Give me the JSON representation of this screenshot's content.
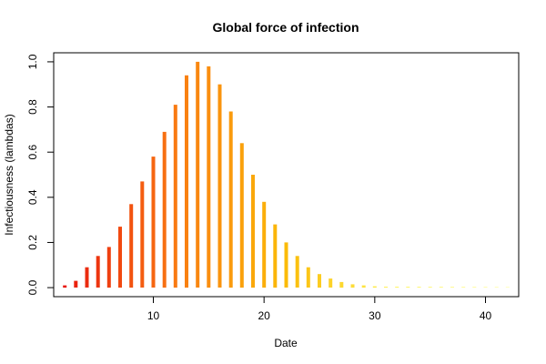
{
  "chart_data": {
    "type": "bar",
    "title": "Global force of infection",
    "xlabel": "Date",
    "ylabel": "Infectiousness (lambdas)",
    "xlim": [
      1,
      43
    ],
    "ylim": [
      -0.04,
      1.04
    ],
    "x_ticks": [
      10,
      20,
      30,
      40
    ],
    "y_ticks": [
      0.0,
      0.2,
      0.4,
      0.6,
      0.8,
      1.0
    ],
    "y_tick_labels": [
      "0.0",
      "0.2",
      "0.4",
      "0.6",
      "0.8",
      "1.0"
    ],
    "grid": false,
    "legend": "none",
    "x": [
      2,
      3,
      4,
      5,
      6,
      7,
      8,
      9,
      10,
      11,
      12,
      13,
      14,
      15,
      16,
      17,
      18,
      19,
      20,
      21,
      22,
      23,
      24,
      25,
      26,
      27,
      28,
      29,
      30,
      31,
      32,
      33,
      34,
      35,
      36,
      37,
      38,
      39,
      40,
      41,
      42
    ],
    "values": [
      0.01,
      0.03,
      0.09,
      0.14,
      0.18,
      0.27,
      0.37,
      0.47,
      0.58,
      0.69,
      0.81,
      0.94,
      1.0,
      0.98,
      0.9,
      0.78,
      0.64,
      0.5,
      0.38,
      0.28,
      0.2,
      0.14,
      0.09,
      0.06,
      0.04,
      0.025,
      0.015,
      0.01,
      0.006,
      0.004,
      0.003,
      0.002,
      0.001,
      0.001,
      0.0005,
      0.0003,
      0.0002,
      0.0001,
      0.0001,
      0.0001,
      0.0
    ],
    "color_ramp": [
      "#e8180e",
      "#f97a12",
      "#fbbb08",
      "#fff45a",
      "#ffffc0"
    ]
  }
}
